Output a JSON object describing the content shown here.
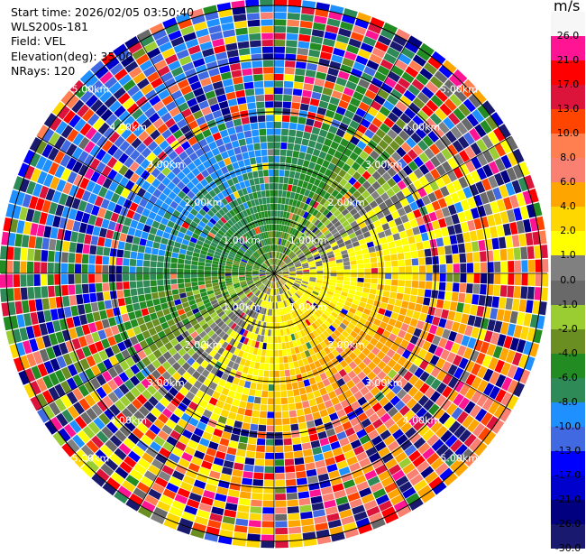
{
  "header": {
    "start_time": "Start time: 2026/02/05 03:50:40",
    "instrument": "WLS200s-181",
    "field": "Field: VEL",
    "elevation": "Elevation(deg): 35.00",
    "nrays": "NRays: 120"
  },
  "colorbar": {
    "units": "m/s",
    "ticks": [
      "26.0",
      "21.0",
      "17.0",
      "13.0",
      "10.0",
      "8.0",
      "6.0",
      "4.0",
      "2.0",
      "1.0",
      "0.0",
      "-1.0",
      "-2.0",
      "-4.0",
      "-6.0",
      "-8.0",
      "-10.0",
      "-13.0",
      "-17.0",
      "-21.0",
      "-26.0",
      "-30.0"
    ],
    "colors": [
      "#f7f7f7",
      "#ff1493",
      "#ff0000",
      "#dc143c",
      "#ff4500",
      "#ff7f50",
      "#fa8072",
      "#ffa500",
      "#ffd700",
      "#ffff00",
      "#808080",
      "#696969",
      "#9acd32",
      "#6b8e23",
      "#228b22",
      "#2e8b57",
      "#1e90ff",
      "#4169e1",
      "#0000ff",
      "#0000cd",
      "#000080",
      "#191970"
    ]
  },
  "range_rings": {
    "labels": [
      "1.00km",
      "2.00km",
      "3.00km",
      "4.00km",
      "5.00km"
    ]
  }
}
